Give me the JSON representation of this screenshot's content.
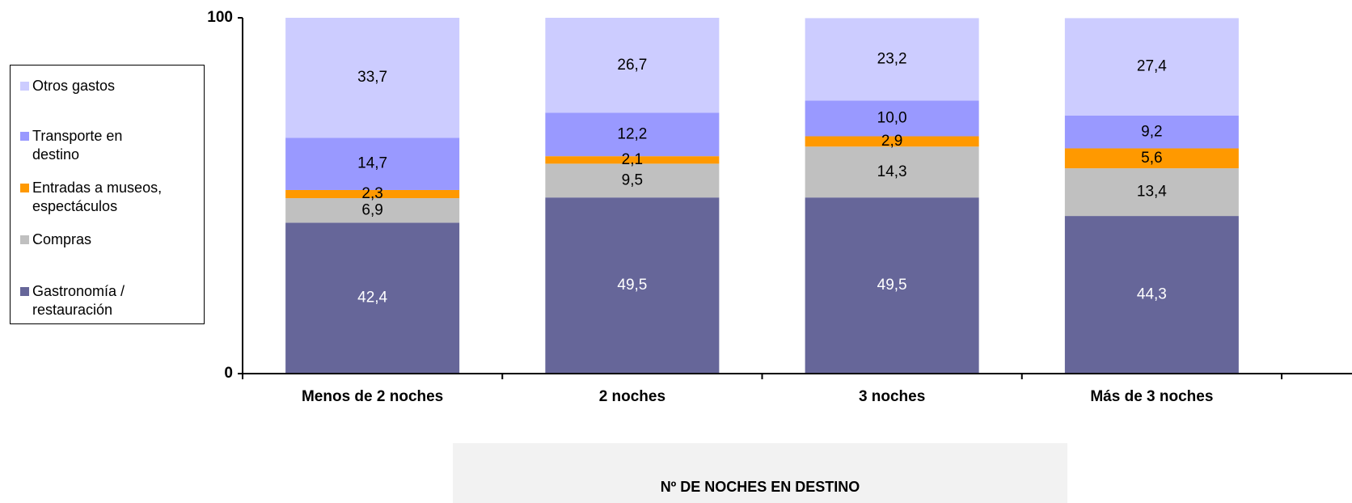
{
  "chart_data": {
    "type": "stacked_bar",
    "x_label": "Nº DE NOCHES EN DESTINO",
    "categories": [
      "Menos de 2 noches",
      "2 noches",
      "3 noches",
      "Más de 3 noches"
    ],
    "series": [
      {
        "name": "Gastronomía / restauración",
        "color": "#666699",
        "values": [
          42.4,
          49.5,
          49.5,
          44.3
        ],
        "value_labels": [
          "42,4",
          "49,5",
          "49,5",
          "44,3"
        ]
      },
      {
        "name": "Compras",
        "color": "#c0c0c0",
        "values": [
          6.9,
          9.5,
          14.3,
          13.4
        ],
        "value_labels": [
          "6,9",
          "9,5",
          "14,3",
          "13,4"
        ]
      },
      {
        "name": "Entradas a museos, espectáculos",
        "color": "#ff9900",
        "values": [
          2.3,
          2.1,
          2.9,
          5.6
        ],
        "value_labels": [
          "2,3",
          "2,1",
          "2,9",
          "5,6"
        ]
      },
      {
        "name": "Transporte en destino",
        "color": "#9999ff",
        "values": [
          14.7,
          12.2,
          10.0,
          9.2
        ],
        "value_labels": [
          "14,7",
          "12,2",
          "10,0",
          "9,2"
        ]
      },
      {
        "name": "Otros gastos",
        "color": "#ccccff",
        "values": [
          33.7,
          26.7,
          23.2,
          27.4
        ],
        "value_labels": [
          "33,7",
          "26,7",
          "23,2",
          "27,4"
        ]
      }
    ],
    "ylim": [
      0,
      100
    ],
    "yticks": [
      0,
      100
    ],
    "grid": false,
    "legend": "left"
  }
}
